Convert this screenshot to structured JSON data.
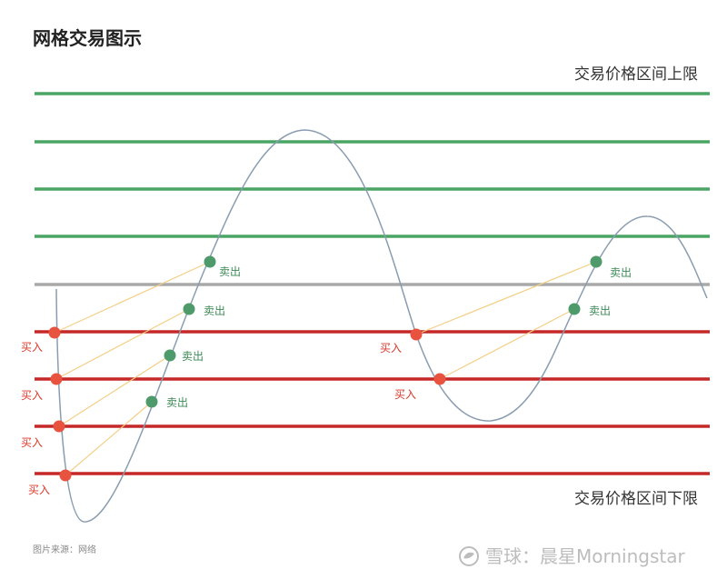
{
  "title": "网格交易图示",
  "upper_bound_label": "交易价格区间上限",
  "lower_bound_label": "交易价格区间下限",
  "source_note": "图片来源：网络",
  "watermark": "雪球：晨星Morningstar",
  "buy_label": "买入",
  "sell_label": "卖出",
  "colors": {
    "upper_grid": "#4aa564",
    "mid_line": "#a9a9a9",
    "lower_grid": "#c62828",
    "price_curve": "#8a9db0",
    "buy_point": "#e8533f",
    "sell_point": "#4e9a6a",
    "trade_link": "#f3cf86",
    "buy_text": "#d9392b",
    "sell_text": "#3d8a57"
  }
}
